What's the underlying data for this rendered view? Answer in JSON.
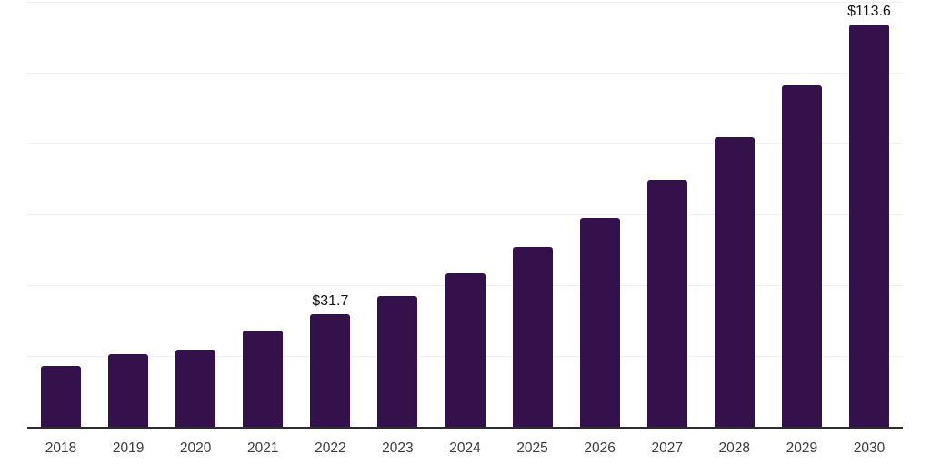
{
  "chart_data": {
    "type": "bar",
    "title": "",
    "xlabel": "",
    "ylabel": "",
    "categories": [
      "2018",
      "2019",
      "2020",
      "2021",
      "2022",
      "2023",
      "2024",
      "2025",
      "2026",
      "2027",
      "2028",
      "2029",
      "2030"
    ],
    "values": [
      17.2,
      20.5,
      21.9,
      27.1,
      31.7,
      36.8,
      43.4,
      50.6,
      59.0,
      69.7,
      81.7,
      96.4,
      113.6
    ],
    "data_labels": [
      {
        "category": "2022",
        "text": "$31.7"
      },
      {
        "category": "2030",
        "text": "$113.6"
      }
    ],
    "currency_prefix": "$",
    "ylim": [
      0,
      120
    ],
    "gridline_interval": 20,
    "grid": "horizontal-only",
    "y_axis_tick_labels": "none",
    "legend": "none",
    "colors": {
      "bar": "#35114B",
      "background": "#ffffff",
      "gridline": "#f0f0f0",
      "axis_line": "#2d2d2d",
      "tick_label": "#3d3d3d",
      "value_label": "#141414"
    }
  }
}
